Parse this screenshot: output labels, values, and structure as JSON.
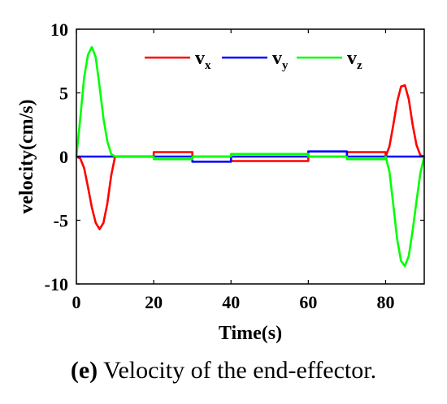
{
  "chart_data": {
    "type": "line",
    "xlabel": "Time(s)",
    "ylabel": "velocity(cm/s)",
    "xlim": [
      0,
      90
    ],
    "ylim": [
      -10,
      10
    ],
    "xticks": [
      0,
      20,
      40,
      60,
      80
    ],
    "yticks": [
      -10,
      -5,
      0,
      5,
      10
    ],
    "grid": false,
    "legend_position": "top-center",
    "series": [
      {
        "name": "v",
        "subscript": "x",
        "color": "#ff0000",
        "x": [
          0,
          1,
          2,
          3,
          4,
          5,
          6,
          7,
          8,
          9,
          10,
          10.01,
          20,
          20.01,
          30,
          30.01,
          40,
          40.01,
          60,
          60.01,
          70,
          70.01,
          80,
          80.01,
          81,
          82,
          83,
          84,
          85,
          86,
          87,
          88,
          89,
          90
        ],
        "y": [
          0,
          -0.15,
          -0.9,
          -2.4,
          -4.0,
          -5.2,
          -5.7,
          -5.2,
          -3.7,
          -1.5,
          0,
          0,
          0,
          0.35,
          0.35,
          0,
          0,
          -0.35,
          -0.35,
          0,
          0,
          0.35,
          0.35,
          0,
          0.8,
          2.5,
          4.3,
          5.5,
          5.6,
          4.5,
          2.5,
          0.9,
          0.1,
          0
        ]
      },
      {
        "name": "v",
        "subscript": "y",
        "color": "#0000ff",
        "x": [
          0,
          30,
          30.01,
          40,
          40.01,
          60,
          60.01,
          70,
          70.01,
          90
        ],
        "y": [
          0,
          0,
          -0.4,
          -0.4,
          0,
          0,
          0.4,
          0.4,
          0,
          0
        ]
      },
      {
        "name": "v",
        "subscript": "z",
        "color": "#00ff00",
        "x": [
          0,
          1,
          2,
          3,
          4,
          5,
          6,
          7,
          8,
          9,
          10,
          10.01,
          20,
          20.01,
          30,
          30.01,
          40,
          40.01,
          60,
          60.01,
          70,
          70.01,
          80,
          80.01,
          81,
          82,
          83,
          84,
          85,
          86,
          87,
          88,
          89,
          90
        ],
        "y": [
          0,
          3.0,
          6.2,
          8.0,
          8.6,
          7.8,
          5.5,
          3.0,
          1.2,
          0.2,
          0,
          0,
          0,
          -0.2,
          -0.2,
          0,
          0,
          0.2,
          0.2,
          0,
          0,
          -0.2,
          -0.2,
          0,
          -1.2,
          -3.8,
          -6.5,
          -8.2,
          -8.6,
          -7.8,
          -5.8,
          -3.5,
          -1.3,
          0
        ]
      }
    ]
  },
  "caption": {
    "label": "(e)",
    "text": " Velocity of the end-effector."
  }
}
